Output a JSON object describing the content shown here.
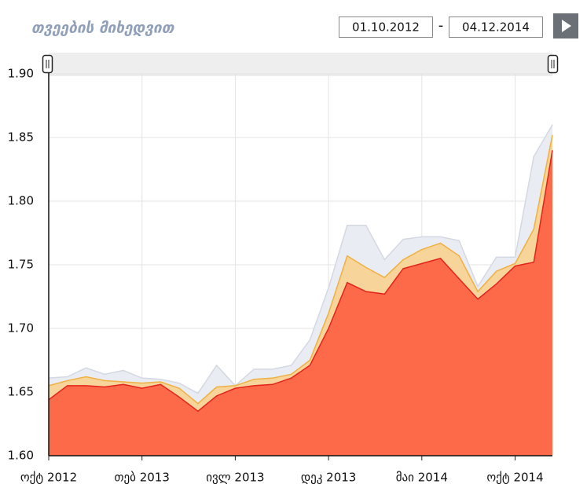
{
  "header": {
    "title": "თვეების მიხედვით",
    "date_from": "01.10.2012",
    "separator": "-",
    "date_to": "04.12.2014"
  },
  "chart_data": {
    "type": "area",
    "categories": [
      "ოქტ 2012",
      null,
      null,
      null,
      null,
      "თებ 2013",
      null,
      null,
      null,
      null,
      "ივლ 2013",
      null,
      null,
      null,
      null,
      "დეკ 2013",
      null,
      null,
      null,
      null,
      "მაი 2014",
      null,
      null,
      null,
      null,
      "ოქტ 2014",
      null,
      null
    ],
    "series": [
      {
        "color": "#e9ecf2",
        "values": [
          1.661,
          1.662,
          1.669,
          1.664,
          1.667,
          1.661,
          1.66,
          1.657,
          1.649,
          1.671,
          1.655,
          1.668,
          1.668,
          1.671,
          1.691,
          1.732,
          1.781,
          1.781,
          1.754,
          1.77,
          1.772,
          1.772,
          1.769,
          1.733,
          1.756,
          1.756,
          1.835,
          1.86
        ]
      },
      {
        "color": "#f6d49a",
        "values": [
          1.655,
          1.659,
          1.662,
          1.659,
          1.658,
          1.657,
          1.658,
          1.653,
          1.641,
          1.654,
          1.655,
          1.66,
          1.661,
          1.664,
          1.675,
          1.712,
          1.757,
          1.748,
          1.74,
          1.754,
          1.762,
          1.767,
          1.757,
          1.729,
          1.745,
          1.751,
          1.778,
          1.852
        ]
      },
      {
        "color": "#fd6a4a",
        "values": [
          1.644,
          1.655,
          1.655,
          1.654,
          1.656,
          1.653,
          1.656,
          1.646,
          1.635,
          1.647,
          1.653,
          1.655,
          1.656,
          1.661,
          1.671,
          1.7,
          1.736,
          1.729,
          1.727,
          1.747,
          1.751,
          1.755,
          1.739,
          1.723,
          1.735,
          1.749,
          1.752,
          1.84
        ]
      }
    ],
    "ylim": [
      1.6,
      1.9
    ],
    "yticks": [
      {
        "value": 1.6,
        "label": "1.60"
      },
      1.65,
      {
        "value": 1.7,
        "label": "1.70"
      },
      1.75,
      {
        "value": 1.8,
        "label": "1.80"
      },
      1.85,
      {
        "value": 1.9,
        "label": "1.90"
      }
    ],
    "grid": true
  }
}
